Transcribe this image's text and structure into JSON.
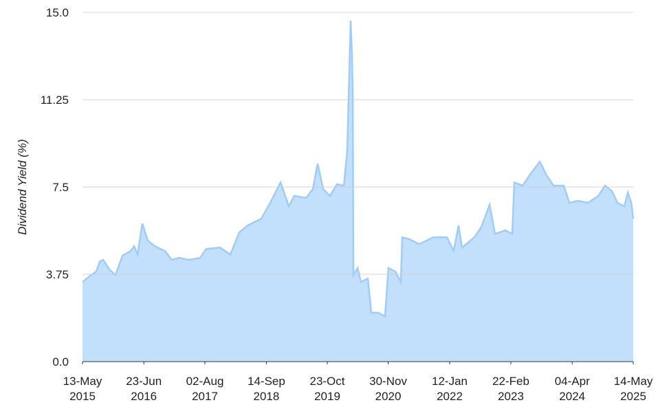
{
  "chart_data": {
    "type": "area",
    "y_label": "Dividend Yield (%)",
    "x": [
      "2015-05-13",
      "2015-06-28",
      "2015-08-12",
      "2015-09-04",
      "2015-09-27",
      "2015-11-11",
      "2015-12-18",
      "2016-02-02",
      "2016-03-27",
      "2016-04-19",
      "2016-05-12",
      "2016-06-13",
      "2016-07-19",
      "2016-09-03",
      "2016-11-10",
      "2016-12-26",
      "2017-02-10",
      "2017-04-19",
      "2017-07-01",
      "2017-08-11",
      "2017-11-10",
      "2018-01-18",
      "2018-03-18",
      "2018-05-12",
      "2018-08-11",
      "2018-10-09",
      "2018-12-17",
      "2019-02-10",
      "2019-03-18",
      "2019-06-04",
      "2019-07-19",
      "2019-08-20",
      "2019-09-26",
      "2019-11-10",
      "2019-12-26",
      "2020-02-10",
      "2020-03-03",
      "2020-03-26",
      "2020-04-04",
      "2020-04-09",
      "2020-04-13",
      "2020-05-11",
      "2020-06-03",
      "2020-07-18",
      "2020-08-10",
      "2020-09-25",
      "2020-11-09",
      "2020-12-02",
      "2021-01-17",
      "2021-02-22",
      "2021-03-03",
      "2021-04-18",
      "2021-06-25",
      "2021-09-25",
      "2021-12-25",
      "2022-02-08",
      "2022-03-12",
      "2022-04-04",
      "2022-06-25",
      "2022-08-10",
      "2022-10-04",
      "2022-11-09",
      "2023-01-17",
      "2023-03-03",
      "2023-03-17",
      "2023-05-11",
      "2023-06-25",
      "2023-09-02",
      "2023-10-17",
      "2023-12-02",
      "2024-02-08",
      "2024-03-16",
      "2024-05-10",
      "2024-07-17",
      "2024-09-24",
      "2024-11-08",
      "2024-12-24",
      "2025-01-29",
      "2025-03-16",
      "2025-04-08",
      "2025-05-01",
      "2025-05-14"
    ],
    "values": [
      3.42,
      3.66,
      3.87,
      4.3,
      4.37,
      3.93,
      3.72,
      4.55,
      4.75,
      4.96,
      4.6,
      5.93,
      5.2,
      4.96,
      4.75,
      4.37,
      4.46,
      4.37,
      4.46,
      4.84,
      4.9,
      4.6,
      5.55,
      5.85,
      6.14,
      6.82,
      7.7,
      6.67,
      7.12,
      7.03,
      7.41,
      8.5,
      7.41,
      7.12,
      7.62,
      7.56,
      9.03,
      14.64,
      13.17,
      11.4,
      3.72,
      4.02,
      3.42,
      3.57,
      2.1,
      2.1,
      1.95,
      4.02,
      3.87,
      3.42,
      5.34,
      5.26,
      5.05,
      5.34,
      5.34,
      4.75,
      5.85,
      4.9,
      5.34,
      5.79,
      6.73,
      5.49,
      5.64,
      5.49,
      7.7,
      7.56,
      8.0,
      8.59,
      8.0,
      7.56,
      7.56,
      6.82,
      6.91,
      6.82,
      7.12,
      7.56,
      7.32,
      6.82,
      6.67,
      7.26,
      6.82,
      6.14
    ],
    "color": "#c2dffb",
    "line_color": "#9fcdf7",
    "xlim": [
      "2015-05-13",
      "2025-05-14"
    ],
    "xticks": [
      {
        "value": "2015-05-13",
        "label": "13-May 2015"
      },
      {
        "value": "2016-06-23",
        "label": "23-Jun 2016"
      },
      {
        "value": "2017-08-02",
        "label": "02-Aug 2017"
      },
      {
        "value": "2018-09-14",
        "label": "14-Sep 2018"
      },
      {
        "value": "2019-10-23",
        "label": "23-Oct 2019"
      },
      {
        "value": "2020-11-30",
        "label": "30-Nov 2020"
      },
      {
        "value": "2022-01-12",
        "label": "12-Jan 2022"
      },
      {
        "value": "2023-02-22",
        "label": "22-Feb 2023"
      },
      {
        "value": "2024-04-04",
        "label": "04-Apr 2024"
      },
      {
        "value": "2025-05-14",
        "label": "14-May 2025"
      }
    ],
    "ylim": [
      0,
      15
    ],
    "yticks": [
      {
        "value": 0,
        "label": "0.0"
      },
      3.75,
      7.5,
      11.25,
      {
        "value": 15,
        "label": "15.0"
      }
    ],
    "grid": true
  }
}
